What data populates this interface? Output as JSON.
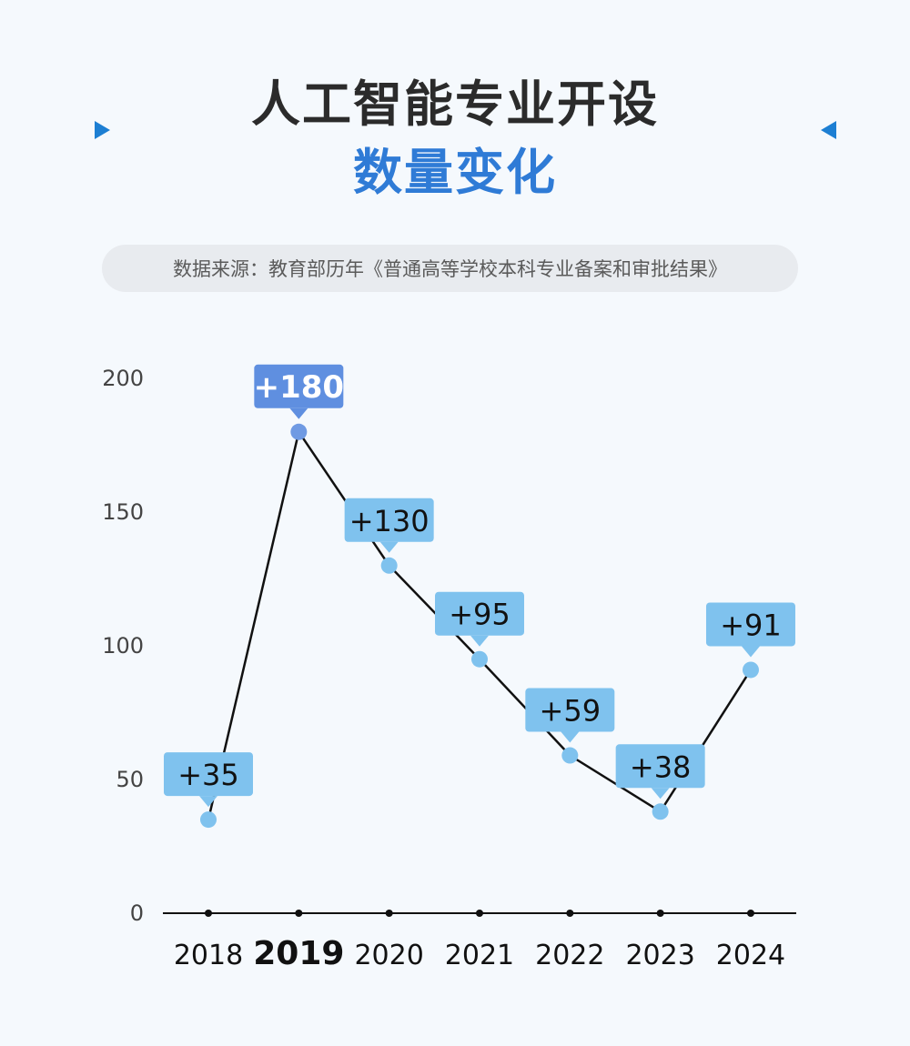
{
  "header": {
    "title_line1": "人工智能专业开设",
    "title_line2": "数量变化",
    "source": "数据来源：教育部历年《普通高等学校本科专业备案和审批结果》"
  },
  "chart_data": {
    "type": "line",
    "title": "人工智能专业开设数量变化",
    "x": [
      "2018",
      "2019",
      "2020",
      "2021",
      "2022",
      "2023",
      "2024"
    ],
    "values": [
      35,
      180,
      130,
      95,
      59,
      38,
      91
    ],
    "data_labels": [
      "+35",
      "+180",
      "+130",
      "+95",
      "+59",
      "+38",
      "+91"
    ],
    "highlight": "2019",
    "yticks": [
      0,
      50,
      100,
      150,
      200
    ],
    "ylim": [
      0,
      200
    ],
    "grid": false,
    "colors": {
      "line": "#111111",
      "point": "#7fc2ee",
      "label_box": "#7fc2ee",
      "highlight_box": "#5f8fe0",
      "highlight_point": "#6f9ae3"
    }
  }
}
